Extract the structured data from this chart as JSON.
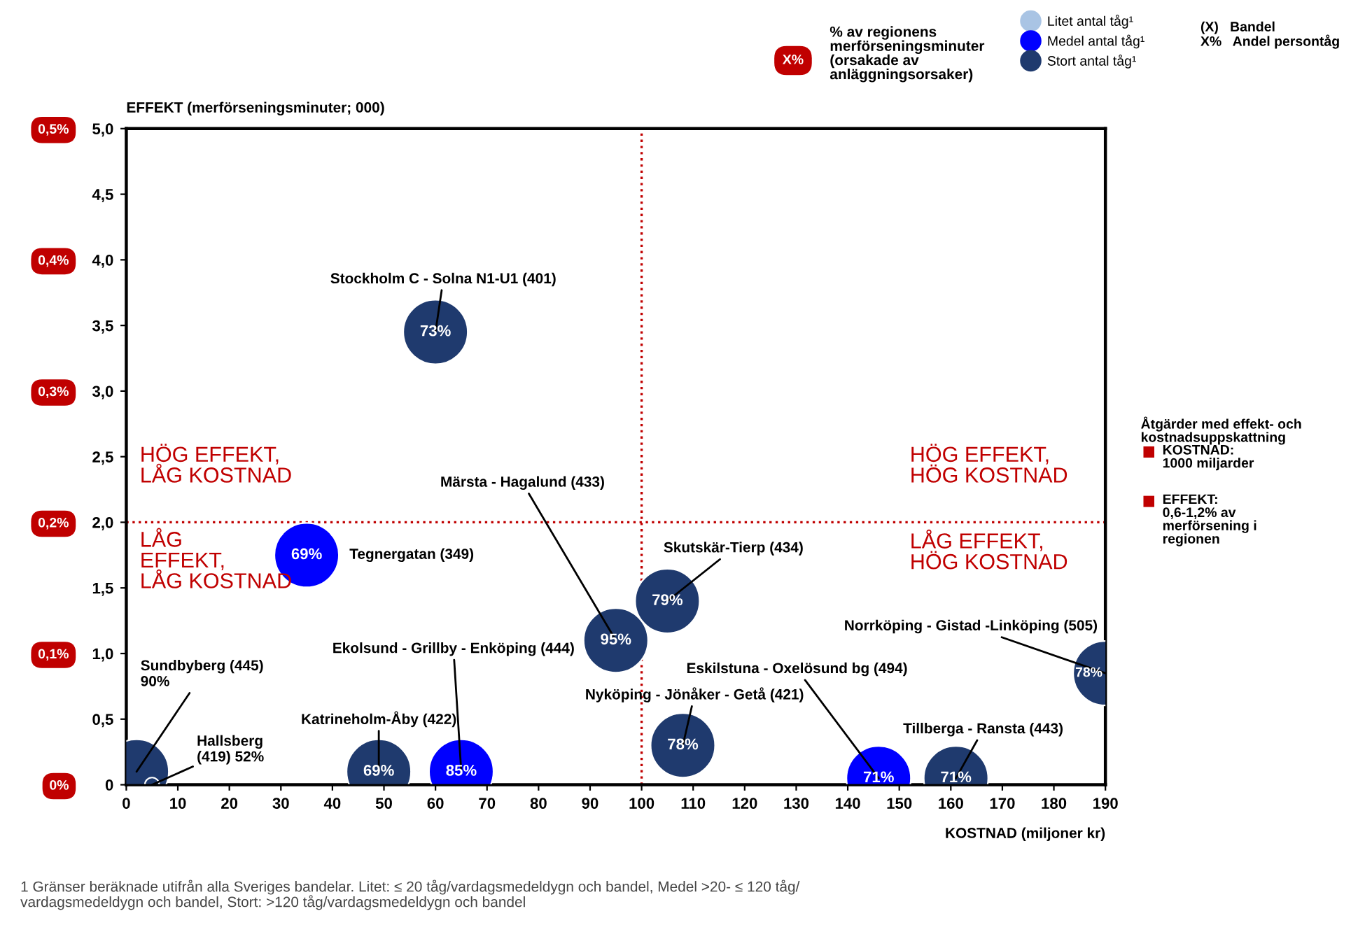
{
  "chart_data": {
    "type": "bubble",
    "ylabel": "EFFEKT (merförseningsminuter; 000)",
    "xlabel": "KOSTNAD (miljoner kr)",
    "xlim": [
      0,
      190
    ],
    "xticks": [
      0,
      10,
      20,
      30,
      40,
      50,
      60,
      70,
      80,
      90,
      100,
      110,
      120,
      130,
      140,
      150,
      160,
      170,
      180,
      190
    ],
    "ylim": [
      0,
      5
    ],
    "yticks": [
      {
        "value": 0,
        "label": "0"
      },
      {
        "value": 0.5,
        "label": "0,5"
      },
      {
        "value": 1,
        "label": "1,0"
      },
      {
        "value": 1.5,
        "label": "1,5"
      },
      {
        "value": 2,
        "label": "2,0"
      },
      {
        "value": 2.5,
        "label": "2,5"
      },
      {
        "value": 3,
        "label": "3,0"
      },
      {
        "value": 3.5,
        "label": "3,5"
      },
      {
        "value": 4,
        "label": "4,0"
      },
      {
        "value": 4.5,
        "label": "4,5"
      },
      {
        "value": 5,
        "label": "5,0"
      }
    ],
    "y2lim": [
      0,
      0.5
    ],
    "y2ticks": [
      {
        "value": 0,
        "label": "0%"
      },
      {
        "value": 0.1,
        "label": "0,1%"
      },
      {
        "value": 0.2,
        "label": "0,2%"
      },
      {
        "value": 0.3,
        "label": "0,3%"
      },
      {
        "value": 0.4,
        "label": "0,4%"
      },
      {
        "value": 0.5,
        "label": "0,5%"
      }
    ],
    "series": [
      {
        "name": "Litet antal tåg¹",
        "color": "#a9c4e4"
      },
      {
        "name": "Medel antal tåg¹",
        "color": "#0000ff",
        "x": [
          35,
          65,
          146
        ],
        "values": [
          1.75,
          0.1,
          0.05
        ],
        "sizes": [
          1,
          1,
          1
        ]
      },
      {
        "name": "Stort antal tåg¹",
        "color": "#1f3a6e",
        "x": [
          60,
          95,
          105,
          49,
          2,
          5,
          108,
          161,
          190
        ],
        "values": [
          3.45,
          1.1,
          1.4,
          0.1,
          0.1,
          0.0,
          0.3,
          0.05,
          0.85
        ],
        "sizes": [
          1,
          1,
          1,
          1,
          1,
          0.05,
          1,
          1,
          1
        ]
      }
    ],
    "ref_lines": [
      {
        "axis": "x",
        "value": 100,
        "color": "#c00000",
        "line_style": "dotted"
      },
      {
        "axis": "y",
        "value": 2.0,
        "color": "#c00000",
        "line_style": "dotted"
      }
    ],
    "annotations": [
      {
        "text": "Stockholm C - Solna N1-U1 (401)",
        "x": 60,
        "y": 3.45
      },
      {
        "text": "Tegnergatan (349)",
        "x": 35,
        "y": 1.75
      },
      {
        "text": "Märsta - Hagalund (433)",
        "x": 95,
        "y": 1.1
      },
      {
        "text": "Skutskär-Tierp (434)",
        "x": 105,
        "y": 1.4
      },
      {
        "text": "Ekolsund - Grillby - Enköping (444)",
        "x": 65,
        "y": 0.1
      },
      {
        "text": "Katrineholm-Åby (422)",
        "x": 49,
        "y": 0.1
      },
      {
        "text": "Sundbyberg (445)\n90%",
        "x": 2,
        "y": 0.1
      },
      {
        "text": "Hallsberg\n(419) 52%",
        "x": 5,
        "y": 0.0
      },
      {
        "text": "Nyköping - Jönåker - Getå (421)",
        "x": 108,
        "y": 0.3
      },
      {
        "text": "Eskilstuna - Oxelösund bg (494)",
        "x": 146,
        "y": 0.05
      },
      {
        "text": "Tillberga - Ransta (443)",
        "x": 161,
        "y": 0.05
      },
      {
        "text": "Norrköping - Gistad -Linköping (505)",
        "x": 190,
        "y": 0.85
      },
      {
        "text": "73%",
        "x": 60,
        "y": 3.45
      },
      {
        "text": "69%",
        "x": 35,
        "y": 1.75
      },
      {
        "text": "95%",
        "x": 95,
        "y": 1.1
      },
      {
        "text": "79%",
        "x": 105,
        "y": 1.4
      },
      {
        "text": "85%",
        "x": 65,
        "y": 0.1
      },
      {
        "text": "69%",
        "x": 49,
        "y": 0.1
      },
      {
        "text": "78%",
        "x": 108,
        "y": 0.3
      },
      {
        "text": "71%",
        "x": 146,
        "y": 0.05
      },
      {
        "text": "71%",
        "x": 161,
        "y": 0.05
      },
      {
        "text": "78%",
        "x": 190,
        "y": 0.85
      },
      "HÖG EFFEKT,\nLÅG KOSTNAD",
      "LÅG\nEFFEKT,\nLÅG KOSTNAD",
      "HÖG EFFEKT,\nHÖG KOSTNAD",
      "LÅG EFFEKT,\nHÖG KOSTNAD",
      "X%",
      "% av regionens\nmerförseningsminuter\n(orsakade av\nanläggningsorsaker)",
      "(X)   Bandel\nX%   Andel persontåg",
      "Åtgärder med effekt- och\nkostnadsuppskattning",
      "KOSTNAD:\n1000 miljarder",
      "EFFEKT:\n0,6-1,2% av\nmerförsening i\nregionen",
      "1 Gränser beräknade utifrån alla Sveriges bandelar. Litet: ≤ 20 tåg/vardagsmedeldygn och bandel, Medel >20- ≤ 120 tåg/\nvardagsmedeldygn och bandel, Stort: >120 tåg/vardagsmedeldygn och bandel"
    ],
    "legend": "top right",
    "grid": false,
    "marker": "circle"
  }
}
